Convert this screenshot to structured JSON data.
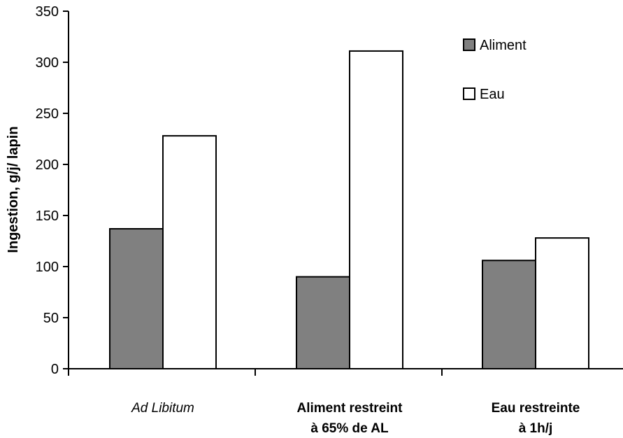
{
  "chart_data": {
    "type": "bar",
    "ylabel": "Ingestion, g/j/ lapin",
    "ylim": [
      0,
      350
    ],
    "yticks": [
      0,
      50,
      100,
      150,
      200,
      250,
      300,
      350
    ],
    "grid": false,
    "legend_position": "top-right",
    "categories": [
      {
        "lines": [
          "Ad Libitum"
        ],
        "style": "italic"
      },
      {
        "lines": [
          "Aliment restreint",
          "à 65% de AL"
        ],
        "style": "bold"
      },
      {
        "lines": [
          "Eau restreinte",
          "à 1h/j"
        ],
        "style": "bold"
      }
    ],
    "series": [
      {
        "name": "Aliment",
        "color": "#808080",
        "values": [
          137,
          90,
          106
        ]
      },
      {
        "name": "Eau",
        "color": "#ffffff",
        "values": [
          228,
          311,
          128
        ]
      }
    ]
  }
}
